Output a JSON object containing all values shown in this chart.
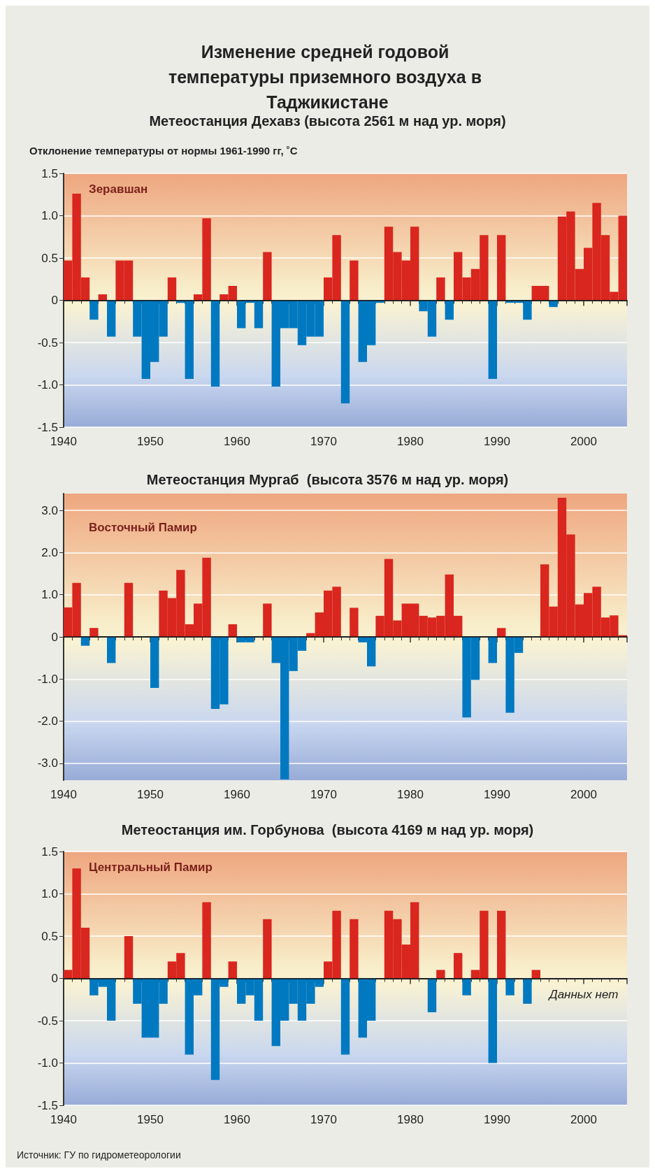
{
  "chart_data": [
    {
      "type": "histogram",
      "title": "Изменение средней годовой температуры приземного воздуха в Таджикистане",
      "subtitle": "Метеостанция Дехавз (высота 2561 м над ур. моря)",
      "ylabel": "Отклонение температуры от нормы 1961-1990 гг, ˚С",
      "annotations": [
        "Зеравшан"
      ],
      "bins": [
        1940,
        1941,
        1942,
        1943,
        1944,
        1945,
        1946,
        1947,
        1948,
        1949,
        1950,
        1951,
        1952,
        1953,
        1954,
        1955,
        1956,
        1957,
        1958,
        1959,
        1960,
        1961,
        1962,
        1963,
        1964,
        1965,
        1966,
        1967,
        1968,
        1969,
        1970,
        1971,
        1972,
        1973,
        1974,
        1975,
        1976,
        1977,
        1978,
        1979,
        1980,
        1981,
        1982,
        1983,
        1984,
        1985,
        1986,
        1987,
        1988,
        1989,
        1990,
        1991,
        1992,
        1993,
        1994,
        1995,
        1996,
        1997,
        1998,
        1999,
        2000,
        2001,
        2002,
        2003,
        2004,
        2005
      ],
      "values": [
        0.47,
        1.26,
        0.27,
        -0.23,
        0.07,
        -0.43,
        0.47,
        0.47,
        -0.43,
        -0.93,
        -0.73,
        -0.43,
        0.27,
        -0.03,
        -0.93,
        0.07,
        0.97,
        -1.02,
        0.07,
        0.17,
        -0.33,
        -0.03,
        -0.33,
        0.57,
        -1.02,
        -0.33,
        -0.33,
        -0.53,
        -0.43,
        -0.43,
        0.27,
        0.77,
        -1.22,
        0.47,
        -0.73,
        -0.53,
        -0.03,
        0.87,
        0.57,
        0.47,
        0.87,
        -0.13,
        -0.43,
        0.27,
        -0.23,
        0.57,
        0.27,
        0.37,
        0.77,
        -0.93,
        0.77,
        -0.03,
        -0.03,
        -0.23,
        0.17,
        0.17,
        -0.08,
        0.99,
        1.05,
        0.37,
        0.62,
        1.15,
        0.77,
        0.1,
        1.0
      ],
      "colors": [
        "#d9261e",
        "#d9261e",
        "#d9261e",
        "#0079c1",
        "#d9261e",
        "#0079c1",
        "#d9261e",
        "#d9261e",
        "#0079c1",
        "#0079c1",
        "#0079c1",
        "#0079c1",
        "#d9261e",
        "#0079c1",
        "#0079c1",
        "#d9261e",
        "#d9261e",
        "#0079c1",
        "#d9261e",
        "#d9261e",
        "#0079c1",
        "#0079c1",
        "#0079c1",
        "#d9261e",
        "#0079c1",
        "#0079c1",
        "#0079c1",
        "#0079c1",
        "#0079c1",
        "#0079c1",
        "#d9261e",
        "#d9261e",
        "#0079c1",
        "#d9261e",
        "#0079c1",
        "#0079c1",
        "#0079c1",
        "#d9261e",
        "#d9261e",
        "#d9261e",
        "#d9261e",
        "#0079c1",
        "#0079c1",
        "#d9261e",
        "#0079c1",
        "#d9261e",
        "#d9261e",
        "#d9261e",
        "#d9261e",
        "#0079c1",
        "#d9261e",
        "#0079c1",
        "#0079c1",
        "#0079c1",
        "#d9261e",
        "#d9261e",
        "#0079c1",
        "#d9261e",
        "#d9261e",
        "#d9261e",
        "#d9261e",
        "#d9261e",
        "#d9261e",
        "#d9261e",
        "#d9261e"
      ],
      "xlim": [
        1940,
        2005
      ],
      "xticks": [
        1940,
        1950,
        1960,
        1970,
        1980,
        1990,
        2000
      ],
      "ylim": [
        -1.5,
        1.5
      ],
      "yticks": [
        {
          "value": -1.5,
          "label": "-1.5"
        },
        {
          "value": -1,
          "label": "-1.0"
        },
        -0.5,
        0,
        0.5,
        {
          "value": 1,
          "label": "1.0"
        },
        1.5
      ],
      "ref_lines": [
        {
          "axis": "y",
          "value": 0,
          "color": "#1a1a1a"
        }
      ],
      "grid": "y"
    },
    {
      "type": "histogram",
      "subtitle": "Метеостанция Мургаб  (высота 3576 м над ур. моря)",
      "annotations": [
        "Восточный Памир"
      ],
      "bins": [
        1940,
        1941,
        1942,
        1943,
        1944,
        1945,
        1946,
        1947,
        1948,
        1949,
        1950,
        1951,
        1952,
        1953,
        1954,
        1955,
        1956,
        1957,
        1958,
        1959,
        1960,
        1961,
        1962,
        1963,
        1964,
        1965,
        1966,
        1967,
        1968,
        1969,
        1970,
        1971,
        1972,
        1973,
        1974,
        1975,
        1976,
        1977,
        1978,
        1979,
        1980,
        1981,
        1982,
        1983,
        1984,
        1985,
        1986,
        1987,
        1988,
        1989,
        1990,
        1991,
        1992,
        1993,
        1994,
        1995,
        1996,
        1997,
        1998,
        1999,
        2000,
        2001,
        2002,
        2003,
        2004,
        2005
      ],
      "values": [
        0.7,
        1.28,
        -0.21,
        0.21,
        0,
        -0.62,
        0,
        1.28,
        0,
        0,
        -1.21,
        1.1,
        0.92,
        1.59,
        0.3,
        0.79,
        1.88,
        -1.71,
        -1.6,
        0.3,
        -0.13,
        -0.13,
        0,
        0.79,
        -0.62,
        -3.38,
        -0.81,
        -0.33,
        0.09,
        0.58,
        1.1,
        1.19,
        0,
        0.69,
        -0.13,
        -0.7,
        0.5,
        1.85,
        0.39,
        0.79,
        0.79,
        0.5,
        0.46,
        0.5,
        1.48,
        0.5,
        -1.91,
        -1.02,
        0,
        -0.62,
        0.21,
        -1.8,
        -0.38,
        0,
        0,
        1.72,
        0.72,
        3.3,
        2.43,
        0.77,
        1.04,
        1.19,
        0.46,
        0.51,
        0.04
      ],
      "colors": [
        "#d9261e",
        "#d9261e",
        "#0079c1",
        "#d9261e",
        "#d9261e",
        "#0079c1",
        "#d9261e",
        "#d9261e",
        "#d9261e",
        "#d9261e",
        "#0079c1",
        "#d9261e",
        "#d9261e",
        "#d9261e",
        "#d9261e",
        "#d9261e",
        "#d9261e",
        "#0079c1",
        "#0079c1",
        "#d9261e",
        "#0079c1",
        "#0079c1",
        "#d9261e",
        "#d9261e",
        "#0079c1",
        "#0079c1",
        "#0079c1",
        "#0079c1",
        "#d9261e",
        "#d9261e",
        "#d9261e",
        "#d9261e",
        "#d9261e",
        "#d9261e",
        "#0079c1",
        "#0079c1",
        "#d9261e",
        "#d9261e",
        "#d9261e",
        "#d9261e",
        "#d9261e",
        "#d9261e",
        "#d9261e",
        "#d9261e",
        "#d9261e",
        "#d9261e",
        "#0079c1",
        "#0079c1",
        "#d9261e",
        "#0079c1",
        "#d9261e",
        "#0079c1",
        "#0079c1",
        "#d9261e",
        "#d9261e",
        "#d9261e",
        "#d9261e",
        "#d9261e",
        "#d9261e",
        "#d9261e",
        "#d9261e",
        "#d9261e",
        "#d9261e",
        "#d9261e",
        "#d9261e"
      ],
      "xlim": [
        1940,
        2005
      ],
      "xticks": [
        1940,
        1950,
        1960,
        1970,
        1980,
        1990,
        2000
      ],
      "ylim": [
        -3.4,
        3.4
      ],
      "yticks": [
        {
          "value": -3,
          "label": "-3.0"
        },
        {
          "value": -2,
          "label": "-2.0"
        },
        {
          "value": -1,
          "label": "-1.0"
        },
        0,
        {
          "value": 1,
          "label": "1.0"
        },
        {
          "value": 2,
          "label": "2.0"
        },
        {
          "value": 3,
          "label": "3.0"
        }
      ],
      "ref_lines": [
        {
          "axis": "y",
          "value": 0,
          "color": "#1a1a1a"
        }
      ],
      "grid": "y"
    },
    {
      "type": "histogram",
      "subtitle": "Метеостанция им. Горбунова  (высота 4169 м над ур. моря)",
      "annotations": [
        "Центральный Памир",
        "Данных нет",
        "Источник: ГУ по гидрометеорологии"
      ],
      "bins": [
        1940,
        1941,
        1942,
        1943,
        1944,
        1945,
        1946,
        1947,
        1948,
        1949,
        1950,
        1951,
        1952,
        1953,
        1954,
        1955,
        1956,
        1957,
        1958,
        1959,
        1960,
        1961,
        1962,
        1963,
        1964,
        1965,
        1966,
        1967,
        1968,
        1969,
        1970,
        1971,
        1972,
        1973,
        1974,
        1975,
        1976,
        1977,
        1978,
        1979,
        1980,
        1981,
        1982,
        1983,
        1984,
        1985,
        1986,
        1987,
        1988,
        1989,
        1990,
        1991,
        1992,
        1993,
        1994,
        1995,
        1996,
        1997,
        1998,
        1999,
        2000,
        2001,
        2002,
        2003,
        2004,
        2005
      ],
      "values": [
        0.1,
        1.3,
        0.6,
        -0.2,
        -0.1,
        -0.5,
        0,
        0.5,
        -0.3,
        -0.7,
        -0.7,
        -0.3,
        0.2,
        0.3,
        -0.9,
        -0.2,
        0.9,
        -1.2,
        -0.1,
        0.2,
        -0.3,
        -0.2,
        -0.5,
        0.7,
        -0.8,
        -0.5,
        -0.3,
        -0.5,
        -0.3,
        -0.1,
        0.2,
        0.8,
        -0.9,
        0.7,
        -0.7,
        -0.5,
        0,
        0.8,
        0.7,
        0.4,
        0.9,
        0,
        -0.4,
        0.1,
        0,
        0.3,
        -0.2,
        0.1,
        0.8,
        -1.0,
        0.8,
        -0.2,
        0,
        -0.3,
        0.1,
        null,
        null,
        null,
        null,
        null,
        null,
        null,
        null,
        null,
        null
      ],
      "colors": [
        "#d9261e",
        "#d9261e",
        "#d9261e",
        "#0079c1",
        "#0079c1",
        "#0079c1",
        "#d9261e",
        "#d9261e",
        "#0079c1",
        "#0079c1",
        "#0079c1",
        "#0079c1",
        "#d9261e",
        "#d9261e",
        "#0079c1",
        "#0079c1",
        "#d9261e",
        "#0079c1",
        "#0079c1",
        "#d9261e",
        "#0079c1",
        "#0079c1",
        "#0079c1",
        "#d9261e",
        "#0079c1",
        "#0079c1",
        "#0079c1",
        "#0079c1",
        "#0079c1",
        "#0079c1",
        "#d9261e",
        "#d9261e",
        "#0079c1",
        "#d9261e",
        "#0079c1",
        "#0079c1",
        "#d9261e",
        "#d9261e",
        "#d9261e",
        "#d9261e",
        "#d9261e",
        "#d9261e",
        "#0079c1",
        "#d9261e",
        "#d9261e",
        "#d9261e",
        "#0079c1",
        "#d9261e",
        "#d9261e",
        "#0079c1",
        "#d9261e",
        "#0079c1",
        "#d9261e",
        "#0079c1",
        "#d9261e",
        null,
        null,
        null,
        null,
        null,
        null,
        null,
        null,
        null,
        null
      ],
      "xlim": [
        1940,
        2005
      ],
      "xticks": [
        1940,
        1950,
        1960,
        1970,
        1980,
        1990,
        2000
      ],
      "ylim": [
        -1.5,
        1.5
      ],
      "yticks": [
        {
          "value": -1.5,
          "label": "-1.5"
        },
        {
          "value": -1,
          "label": "-1.0"
        },
        -0.5,
        0,
        0.5,
        {
          "value": 1,
          "label": "1.0"
        },
        1.5
      ],
      "ref_lines": [
        {
          "axis": "y",
          "value": 0,
          "color": "#1a1a1a"
        }
      ],
      "grid": "y"
    }
  ]
}
